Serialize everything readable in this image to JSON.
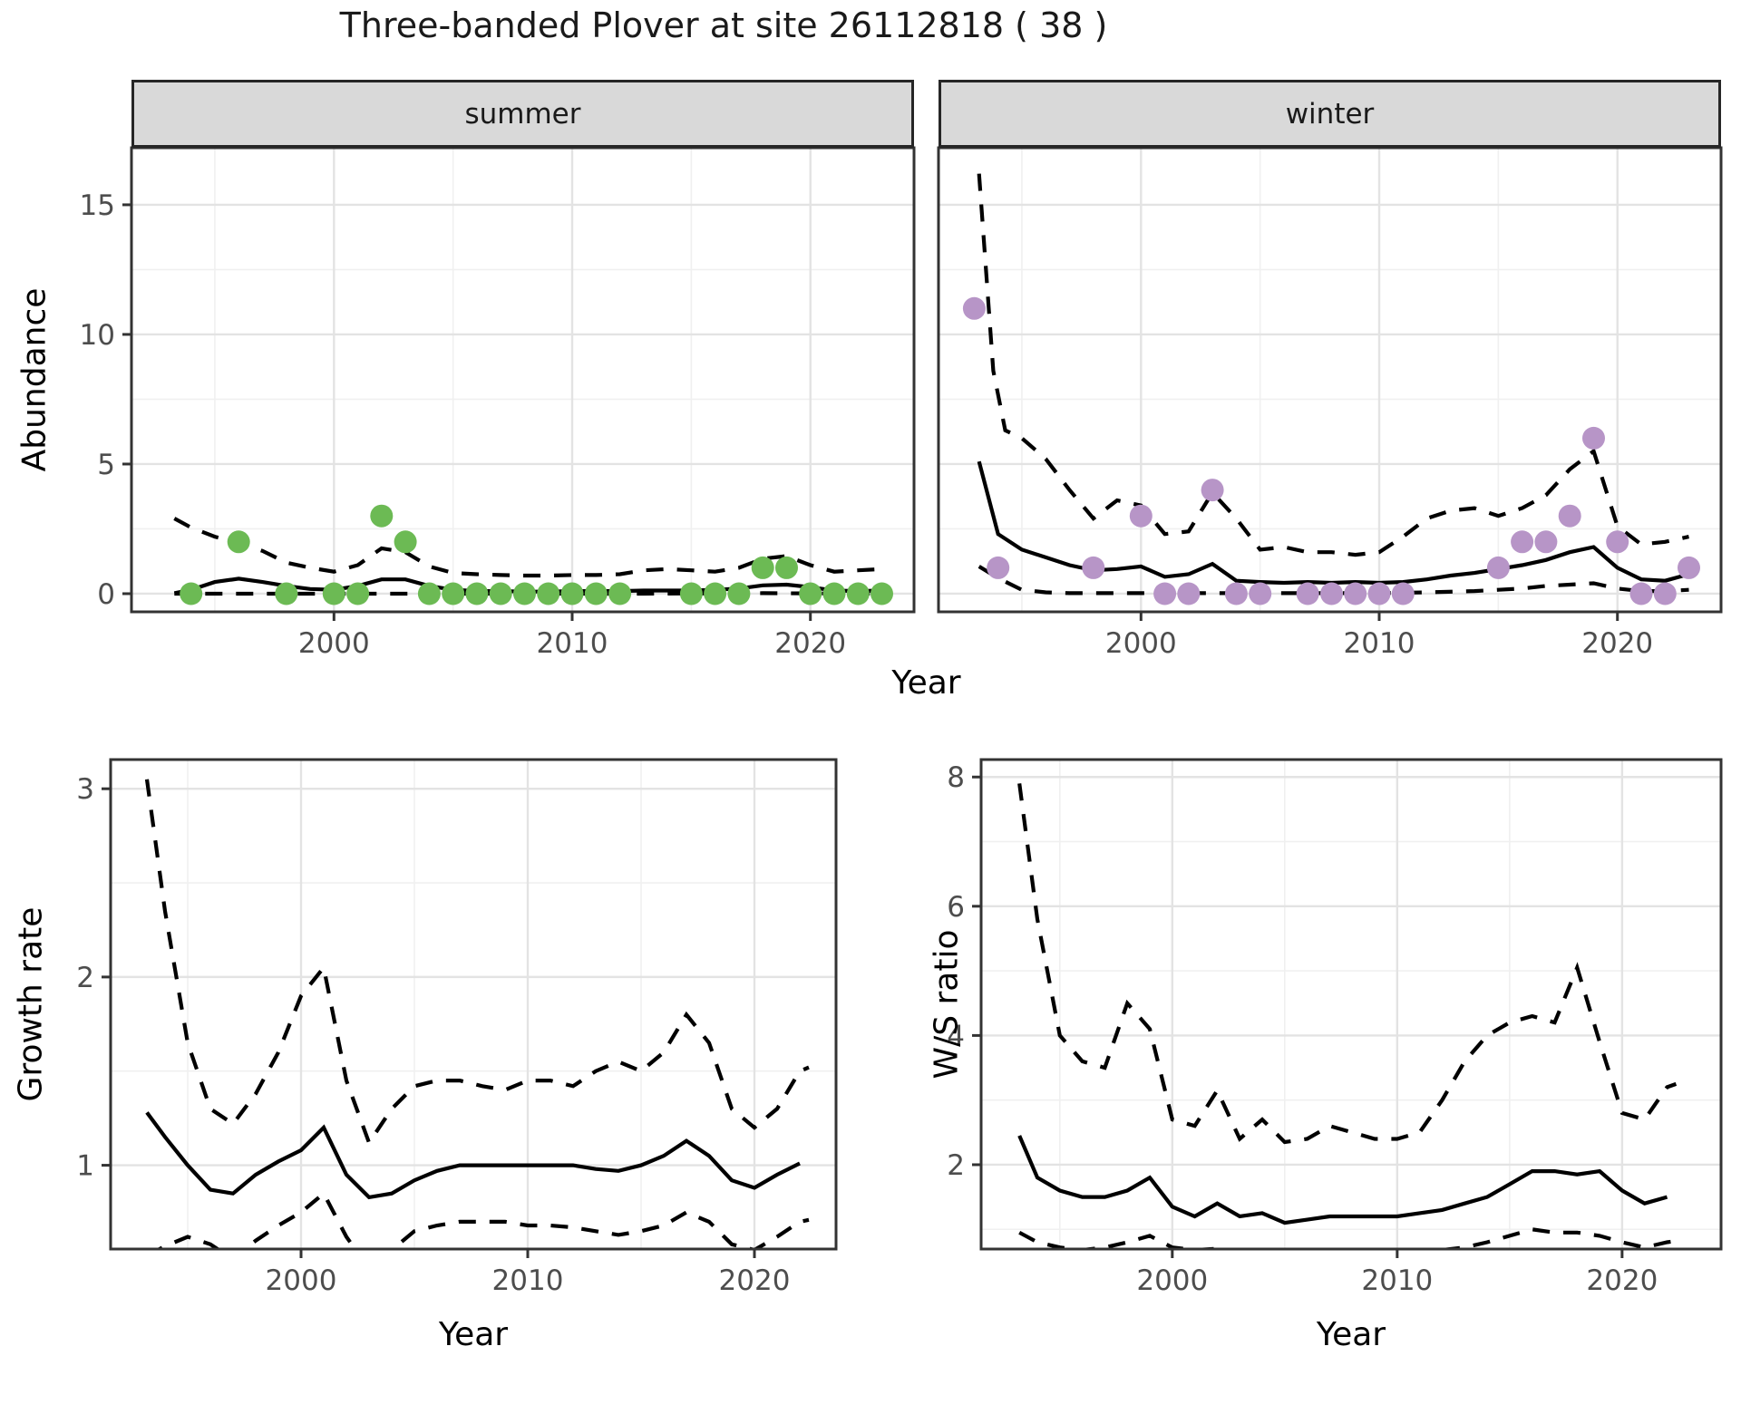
{
  "title": "Three-banded Plover at site 26112818 ( 38 )",
  "labels": {
    "facet_summer": "summer",
    "facet_winter": "winter",
    "y_top": "Abundance",
    "x_top": "Year",
    "y_growth": "Growth rate",
    "x_growth": "Year",
    "y_ws": "W/S ratio",
    "x_ws": "Year"
  },
  "colors": {
    "summer_points": "#6CBA54",
    "winter_points": "#B795C7",
    "line": "#000000",
    "grid_major": "#E3E3E3",
    "grid_minor": "#F0F0F0",
    "panel_border": "#333333",
    "strip_bg": "#D9D9D9",
    "tick_text": "#4D4D4D"
  },
  "chart_data": [
    {
      "id": "abundance_summer",
      "type": "scatter",
      "facet_label": "summer",
      "xlabel": "Year",
      "ylabel": "Abundance",
      "xlim": [
        1991.5,
        2024.35
      ],
      "ylim": [
        -0.7,
        17.2
      ],
      "x_ticks": [
        2000,
        2010,
        2020
      ],
      "x_minor": [
        1995,
        2005,
        2015
      ],
      "y_ticks": [
        0,
        5,
        10,
        15
      ],
      "y_minor": [
        2.5,
        7.5,
        12.5
      ],
      "show_y_labels": true,
      "point_color": "#6CBA54",
      "points": {
        "x": [
          1994,
          1996,
          1998,
          2000,
          2001,
          2002,
          2003,
          2004,
          2005,
          2006,
          2007,
          2008,
          2009,
          2010,
          2011,
          2012,
          2015,
          2016,
          2017,
          2018,
          2019,
          2020,
          2021,
          2022,
          2023
        ],
        "y": [
          0,
          2,
          0,
          0,
          0,
          3,
          2,
          0,
          0,
          0,
          0,
          0,
          0,
          0,
          0,
          0,
          0,
          0,
          0,
          1,
          1,
          0,
          0,
          0,
          0
        ]
      },
      "lines": {
        "mean": {
          "style": "solid",
          "x": [
            1993.3,
            1994,
            1995,
            1996,
            1997,
            1998,
            1999,
            2000,
            2001,
            2002,
            2003,
            2004,
            2005,
            2006,
            2007,
            2008,
            2009,
            2010,
            2011,
            2012,
            2013,
            2014,
            2015,
            2016,
            2017,
            2018,
            2019,
            2020,
            2021,
            2022,
            2023
          ],
          "y": [
            0.02,
            0.15,
            0.45,
            0.58,
            0.45,
            0.3,
            0.18,
            0.15,
            0.3,
            0.55,
            0.55,
            0.3,
            0.15,
            0.1,
            0.1,
            0.08,
            0.08,
            0.1,
            0.1,
            0.1,
            0.12,
            0.12,
            0.12,
            0.15,
            0.2,
            0.32,
            0.35,
            0.25,
            0.12,
            0.1,
            0.12
          ]
        },
        "upper_ci": {
          "style": "dashed",
          "x": [
            1993.3,
            1994,
            1995,
            1996,
            1997,
            1998,
            1999,
            2000,
            2001,
            2002,
            2003,
            2004,
            2005,
            2006,
            2007,
            2008,
            2009,
            2010,
            2011,
            2012,
            2013,
            2014,
            2015,
            2016,
            2017,
            2018,
            2019,
            2020,
            2021,
            2022,
            2023
          ],
          "y": [
            2.9,
            2.55,
            2.2,
            1.95,
            1.65,
            1.2,
            1.0,
            0.85,
            1.1,
            1.75,
            1.6,
            1.05,
            0.8,
            0.75,
            0.72,
            0.7,
            0.7,
            0.72,
            0.72,
            0.75,
            0.9,
            0.95,
            0.9,
            0.85,
            1.0,
            1.35,
            1.45,
            1.1,
            0.85,
            0.9,
            0.95
          ]
        },
        "lower_ci": {
          "style": "dashed",
          "x": [
            1993.3,
            1998,
            2003,
            2008,
            2013,
            2018,
            2023
          ],
          "y": [
            0.0,
            0.0,
            0.0,
            0.0,
            0.0,
            0.02,
            0.0
          ]
        }
      }
    },
    {
      "id": "abundance_winter",
      "type": "scatter",
      "facet_label": "winter",
      "xlabel": "Year",
      "ylabel": "Abundance",
      "xlim": [
        1991.5,
        2024.35
      ],
      "ylim": [
        -0.7,
        17.2
      ],
      "x_ticks": [
        2000,
        2010,
        2020
      ],
      "x_minor": [
        1995,
        2005,
        2015
      ],
      "y_ticks": [
        0,
        5,
        10,
        15
      ],
      "y_minor": [
        2.5,
        7.5,
        12.5
      ],
      "show_y_labels": false,
      "point_color": "#B795C7",
      "points": {
        "x": [
          1993,
          1994,
          1998,
          2000,
          2001,
          2002,
          2003,
          2004,
          2005,
          2007,
          2008,
          2009,
          2010,
          2011,
          2015,
          2016,
          2017,
          2018,
          2019,
          2020,
          2021,
          2022,
          2023
        ],
        "y": [
          11,
          1,
          1,
          3,
          0,
          0,
          4,
          0,
          0,
          0,
          0,
          0,
          0,
          0,
          1,
          2,
          2,
          3,
          6,
          2,
          0,
          0,
          1
        ]
      },
      "lines": {
        "mean": {
          "style": "solid",
          "x": [
            1993.2,
            1994,
            1995,
            1996,
            1997,
            1998,
            1999,
            2000,
            2001,
            2002,
            2003,
            2004,
            2005,
            2006,
            2007,
            2008,
            2009,
            2010,
            2011,
            2012,
            2013,
            2014,
            2015,
            2016,
            2017,
            2018,
            2019,
            2020,
            2021,
            2022,
            2023
          ],
          "y": [
            5.1,
            2.3,
            1.7,
            1.4,
            1.1,
            0.9,
            0.95,
            1.05,
            0.65,
            0.75,
            1.15,
            0.5,
            0.45,
            0.42,
            0.45,
            0.42,
            0.45,
            0.42,
            0.45,
            0.55,
            0.7,
            0.8,
            0.95,
            1.1,
            1.3,
            1.6,
            1.8,
            1.0,
            0.55,
            0.5,
            0.75
          ]
        },
        "upper_ci": {
          "style": "dashed",
          "x": [
            1993.2,
            1993.8,
            1994.3,
            1995,
            1996,
            1997,
            1998,
            1999,
            2000,
            2001,
            2002,
            2003,
            2004,
            2005,
            2006,
            2007,
            2008,
            2009,
            2010,
            2011,
            2012,
            2013,
            2014,
            2015,
            2016,
            2017,
            2018,
            2019,
            2020,
            2021,
            2022,
            2023
          ],
          "y": [
            16.2,
            8.6,
            6.3,
            6.0,
            5.2,
            4.0,
            2.9,
            3.6,
            3.4,
            2.3,
            2.4,
            3.9,
            2.9,
            1.7,
            1.8,
            1.6,
            1.6,
            1.5,
            1.6,
            2.2,
            2.9,
            3.2,
            3.3,
            3.0,
            3.3,
            3.8,
            4.8,
            5.5,
            2.6,
            1.9,
            2.0,
            2.2
          ]
        },
        "lower_ci": {
          "style": "dashed",
          "x": [
            1993.2,
            1994,
            1995,
            1996,
            1997,
            2000,
            2005,
            2010,
            2012,
            2014,
            2015,
            2016,
            2017,
            2018,
            2019,
            2020,
            2021,
            2022,
            2023
          ],
          "y": [
            1.05,
            0.6,
            0.15,
            0.05,
            0.02,
            0.02,
            0.02,
            0.02,
            0.05,
            0.1,
            0.15,
            0.2,
            0.3,
            0.35,
            0.4,
            0.2,
            0.1,
            0.1,
            0.15
          ]
        }
      }
    },
    {
      "id": "growth_rate",
      "type": "line",
      "facet_label": "",
      "xlabel": "Year",
      "ylabel": "Growth rate",
      "xlim": [
        1991.6,
        2023.6
      ],
      "ylim": [
        0.555,
        3.155
      ],
      "x_ticks": [
        2000,
        2010,
        2020
      ],
      "x_minor": [
        1995,
        2005,
        2015
      ],
      "y_ticks": [
        1,
        2,
        3
      ],
      "y_minor": [
        1.5,
        2.5
      ],
      "show_y_labels": true,
      "point_color": null,
      "points": {
        "x": [],
        "y": []
      },
      "lines": {
        "mean": {
          "style": "solid",
          "x": [
            1993.2,
            1994,
            1995,
            1996,
            1997,
            1998,
            1999,
            2000,
            2001,
            2002,
            2003,
            2004,
            2005,
            2006,
            2007,
            2008,
            2009,
            2010,
            2011,
            2012,
            2013,
            2014,
            2015,
            2016,
            2017,
            2018,
            2019,
            2020,
            2021,
            2022
          ],
          "y": [
            1.28,
            1.15,
            1.0,
            0.87,
            0.85,
            0.95,
            1.02,
            1.08,
            1.2,
            0.95,
            0.83,
            0.85,
            0.92,
            0.97,
            1.0,
            1.0,
            1.0,
            1.0,
            1.0,
            1.0,
            0.98,
            0.97,
            1.0,
            1.05,
            1.13,
            1.05,
            0.92,
            0.88,
            0.95,
            1.01
          ]
        },
        "upper_ci": {
          "style": "dashed",
          "x": [
            1993.2,
            1994,
            1995,
            1996,
            1997,
            1998,
            1999,
            2000,
            2001,
            2002,
            2003,
            2004,
            2005,
            2006,
            2007,
            2008,
            2009,
            2010,
            2011,
            2012,
            2013,
            2014,
            2015,
            2016,
            2017,
            2018,
            2019,
            2020,
            2021,
            2022,
            2022.4
          ],
          "y": [
            3.05,
            2.35,
            1.65,
            1.3,
            1.22,
            1.38,
            1.6,
            1.9,
            2.05,
            1.45,
            1.12,
            1.3,
            1.42,
            1.45,
            1.45,
            1.42,
            1.4,
            1.45,
            1.45,
            1.42,
            1.5,
            1.55,
            1.5,
            1.6,
            1.8,
            1.65,
            1.3,
            1.2,
            1.3,
            1.5,
            1.52
          ]
        },
        "lower_ci": {
          "style": "dashed",
          "x": [
            1993.2,
            1994,
            1995,
            1996,
            1997,
            1998,
            1999,
            2000,
            2001,
            2002,
            2003,
            2004,
            2005,
            2006,
            2007,
            2008,
            2009,
            2010,
            2011,
            2012,
            2013,
            2014,
            2015,
            2016,
            2017,
            2018,
            2019,
            2020,
            2021,
            2022,
            2022.4
          ],
          "y": [
            0.52,
            0.57,
            0.62,
            0.58,
            0.5,
            0.6,
            0.68,
            0.75,
            0.85,
            0.62,
            0.45,
            0.55,
            0.65,
            0.68,
            0.7,
            0.7,
            0.7,
            0.68,
            0.68,
            0.67,
            0.65,
            0.63,
            0.65,
            0.68,
            0.75,
            0.7,
            0.58,
            0.55,
            0.62,
            0.7,
            0.71
          ]
        }
      }
    },
    {
      "id": "ws_ratio",
      "type": "line",
      "facet_label": "",
      "xlabel": "Year",
      "ylabel": "W/S ratio",
      "xlim": [
        1991.5,
        2024.4
      ],
      "ylim": [
        0.695,
        8.27
      ],
      "x_ticks": [
        2000,
        2010,
        2020
      ],
      "x_minor": [
        1995,
        2005,
        2015
      ],
      "y_ticks": [
        2,
        4,
        6,
        8
      ],
      "y_minor": [
        1,
        3,
        5,
        7
      ],
      "show_y_labels": true,
      "point_color": null,
      "points": {
        "x": [],
        "y": []
      },
      "lines": {
        "mean": {
          "style": "solid",
          "x": [
            1993.2,
            1994,
            1995,
            1996,
            1997,
            1998,
            1999,
            2000,
            2001,
            2002,
            2003,
            2004,
            2005,
            2006,
            2007,
            2008,
            2009,
            2010,
            2011,
            2012,
            2013,
            2014,
            2015,
            2016,
            2017,
            2018,
            2019,
            2020,
            2021,
            2022
          ],
          "y": [
            2.45,
            1.8,
            1.6,
            1.5,
            1.5,
            1.6,
            1.8,
            1.35,
            1.2,
            1.4,
            1.2,
            1.25,
            1.1,
            1.15,
            1.2,
            1.2,
            1.2,
            1.2,
            1.25,
            1.3,
            1.4,
            1.5,
            1.7,
            1.9,
            1.9,
            1.85,
            1.9,
            1.6,
            1.4,
            1.5
          ]
        },
        "upper_ci": {
          "style": "dashed",
          "x": [
            1993.2,
            1994,
            1995,
            1996,
            1997,
            1998,
            1999,
            2000,
            2001,
            2002,
            2003,
            2004,
            2005,
            2006,
            2007,
            2008,
            2009,
            2010,
            2011,
            2012,
            2013,
            2014,
            2015,
            2016,
            2017,
            2018,
            2019,
            2020,
            2021,
            2022,
            2022.4
          ],
          "y": [
            7.9,
            5.8,
            4.0,
            3.6,
            3.5,
            4.5,
            4.1,
            2.7,
            2.6,
            3.15,
            2.4,
            2.7,
            2.35,
            2.4,
            2.6,
            2.5,
            2.4,
            2.4,
            2.5,
            3.0,
            3.6,
            4.0,
            4.2,
            4.3,
            4.2,
            5.05,
            3.9,
            2.8,
            2.7,
            3.2,
            3.25
          ]
        },
        "lower_ci": {
          "style": "dashed",
          "x": [
            1993.2,
            1994,
            1995,
            1996,
            1997,
            1998,
            1999,
            2000,
            2001,
            2002,
            2003,
            2004,
            2005,
            2006,
            2007,
            2008,
            2009,
            2010,
            2011,
            2012,
            2013,
            2014,
            2015,
            2016,
            2017,
            2018,
            2019,
            2020,
            2021,
            2022,
            2022.4
          ],
          "y": [
            0.95,
            0.8,
            0.72,
            0.68,
            0.72,
            0.8,
            0.9,
            0.72,
            0.68,
            0.7,
            0.65,
            0.68,
            0.65,
            0.65,
            0.66,
            0.66,
            0.66,
            0.66,
            0.67,
            0.68,
            0.72,
            0.8,
            0.9,
            1.0,
            0.95,
            0.95,
            0.9,
            0.8,
            0.72,
            0.8,
            0.82
          ]
        }
      }
    }
  ]
}
